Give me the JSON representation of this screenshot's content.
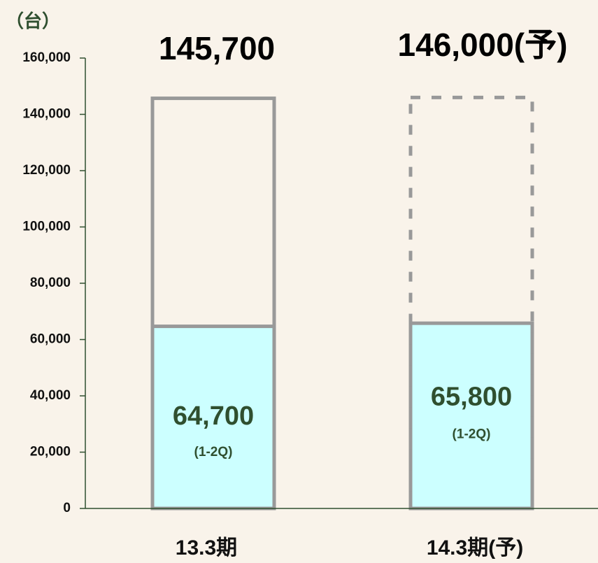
{
  "chart_data": {
    "type": "bar",
    "unit_label": "（台）",
    "categories": [
      "13.3期",
      "14.3期(予)"
    ],
    "series": [
      {
        "name": "(1-2Q)",
        "color": "#ccffff",
        "values": [
          64700,
          65800
        ],
        "value_labels": [
          "64,700",
          "65,800"
        ]
      },
      {
        "color": "#999999",
        "values": [
          145700,
          146000
        ],
        "value_labels": [
          "145,700",
          "146,000(予)"
        ],
        "dashed": [
          false,
          true
        ]
      }
    ],
    "ylim": [
      0,
      160000
    ],
    "yticks": [
      0,
      {
        "value": 20000,
        "label": "20,000"
      },
      {
        "value": 40000,
        "label": "40,000"
      },
      {
        "value": 60000,
        "label": "60,000"
      },
      {
        "value": 80000,
        "label": "80,000"
      },
      {
        "value": 100000,
        "label": "100,000"
      },
      {
        "value": 120000,
        "label": "120,000"
      },
      {
        "value": 140000,
        "label": "140,000"
      },
      {
        "value": 160000,
        "label": "160,000"
      }
    ]
  }
}
